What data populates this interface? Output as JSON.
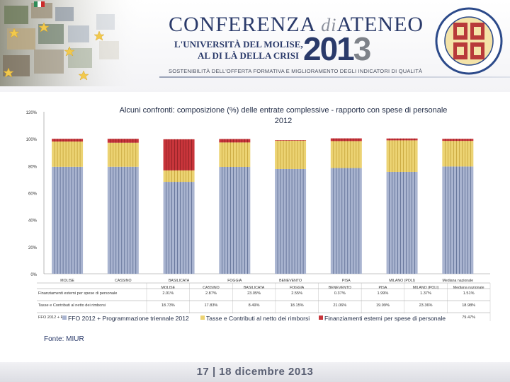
{
  "header": {
    "title_main": "CONFERENZA",
    "title_di": "di",
    "title_end": "ATENEO",
    "year_a": "201",
    "year_b": "3",
    "subtitle_line1": "L'UNIVERSITÀ DEL MOLISE,",
    "subtitle_line2": "AL DI LÀ DELLA CRISI",
    "tagline": "SOSTENIBILITÀ DELL'OFFERTA FORMATIVA E MIGLIORAMENTO DEGLI INDICATORI DI QUALITÀ"
  },
  "chart_data": {
    "type": "bar",
    "stacked": true,
    "title_line1": "Alcuni confronti: composizione (%) delle entrate complessive - rapporto con spese di personale",
    "title_line2": "2012",
    "yticks": [
      "0%",
      "20%",
      "40%",
      "60%",
      "80%",
      "100%",
      "120%"
    ],
    "ylim": [
      0,
      120
    ],
    "categories": [
      "MOLISE",
      "CASSINO",
      "BASILICATA",
      "FOGGIA",
      "BENEVENTO",
      "PISA",
      "MILANO (POLI)",
      "Mediana nazionale"
    ],
    "table_header": [
      "MOLISE",
      "CASSINO",
      "BASILICATA",
      "FOGGIA",
      "BENEVENTO",
      "PISA",
      "MILANO (POLI)",
      "Mediana nazionale"
    ],
    "series": [
      {
        "name": "FFO 2012 + Programmazione triennale 2012",
        "color": "#a9b4d0",
        "values": [
          79.22,
          79.26,
          68.09,
          79.12,
          77.58,
          78.32,
          75.48,
          79.47
        ],
        "row_values": [
          "79.22%",
          "79.26%",
          "68.09%",
          "79.12%",
          "77.58%",
          "78.32%",
          "75.48%",
          "79.47%"
        ]
      },
      {
        "name": "Tasse e Contributi al netto dei rimborsi",
        "color": "#ecd373",
        "values": [
          18.73,
          17.83,
          8.49,
          18.15,
          21.06,
          19.99,
          23.36,
          18.98
        ],
        "row_values": [
          "18.73%",
          "17.83%",
          "8.49%",
          "18.15%",
          "21.06%",
          "19.99%",
          "23.36%",
          "18.98%"
        ]
      },
      {
        "name": "Finanziamenti esterni per spese di personale",
        "color": "#c8353b",
        "values": [
          2.01,
          2.87,
          23.05,
          2.55,
          0.37,
          1.99,
          1.37,
          1.51
        ],
        "row_values": [
          "2.01%",
          "2.87%",
          "23.05%",
          "2.55%",
          "0.37%",
          "1.99%",
          "1.37%",
          "1.51%"
        ]
      }
    ],
    "legend_position": "bottom",
    "grid": false
  },
  "table_labels": {
    "row_finanz": "Finanziamenti esterni per spese di personale",
    "row_tasse": "Tasse e Contributi al netto dei rimborsi",
    "row_ffo": "FFO 2012 + Programmazione triennale 2012"
  },
  "source": "Fonte: MIUR",
  "footer": {
    "date": "17 | 18 dicembre 2013"
  }
}
